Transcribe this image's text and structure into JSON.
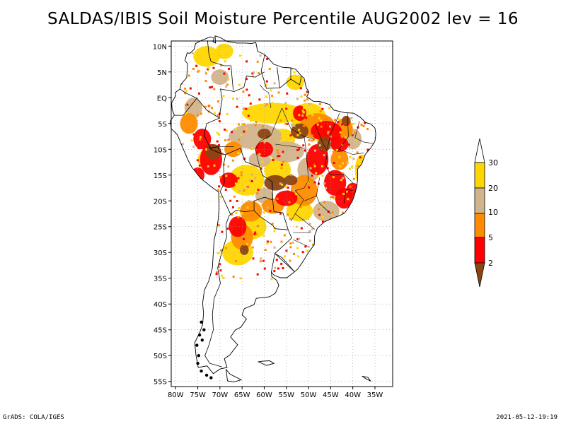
{
  "title": "SALDAS/IBIS Soil Moisture Percentile AUG2002 lev = 16",
  "footer": {
    "left": "GrADS: COLA/IGES",
    "right": "2021-05-12-19:19"
  },
  "map": {
    "lon_range": [
      -81,
      -31
    ],
    "lat_range": [
      -56,
      11
    ],
    "grid": true,
    "x_ticks": [
      {
        "lon": -80,
        "label": "80W"
      },
      {
        "lon": -75,
        "label": "75W"
      },
      {
        "lon": -70,
        "label": "70W"
      },
      {
        "lon": -65,
        "label": "65W"
      },
      {
        "lon": -60,
        "label": "60W"
      },
      {
        "lon": -55,
        "label": "55W"
      },
      {
        "lon": -50,
        "label": "50W"
      },
      {
        "lon": -45,
        "label": "45W"
      },
      {
        "lon": -40,
        "label": "40W"
      },
      {
        "lon": -35,
        "label": "35W"
      }
    ],
    "y_ticks": [
      {
        "lat": 10,
        "label": "10N"
      },
      {
        "lat": 5,
        "label": "5N"
      },
      {
        "lat": 0,
        "label": "EQ"
      },
      {
        "lat": -5,
        "label": "5S"
      },
      {
        "lat": -10,
        "label": "10S"
      },
      {
        "lat": -15,
        "label": "15S"
      },
      {
        "lat": -20,
        "label": "20S"
      },
      {
        "lat": -25,
        "label": "25S"
      },
      {
        "lat": -30,
        "label": "30S"
      },
      {
        "lat": -35,
        "label": "35S"
      },
      {
        "lat": -40,
        "label": "40S"
      },
      {
        "lat": -45,
        "label": "45S"
      },
      {
        "lat": -50,
        "label": "50S"
      },
      {
        "lat": -55,
        "label": "55S"
      }
    ]
  },
  "legend": {
    "colors": {
      "below_2": "#8b4513",
      "2_5": "#ff0000",
      "5_10": "#ff8c00",
      "10_20": "#d2b48c",
      "20_30": "#ffd700",
      "above_30": "#ffffff"
    },
    "labels": [
      "2",
      "5",
      "10",
      "20",
      "30"
    ]
  },
  "colors": {
    "brown": "#8b4513",
    "red": "#ff0000",
    "orange": "#ff8c00",
    "tan": "#d2b48c",
    "gold": "#ffd700"
  }
}
